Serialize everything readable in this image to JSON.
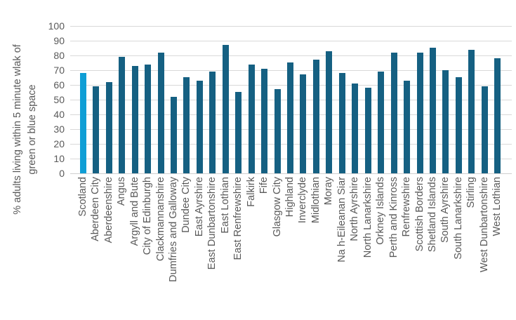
{
  "chart_data": {
    "type": "bar",
    "title": "",
    "ylabel_lines": [
      "% adults living within 5 minute wlak of",
      "green or blue space"
    ],
    "xlabel": "",
    "ylim": [
      0,
      100
    ],
    "yticks": [
      0,
      10,
      20,
      30,
      40,
      50,
      60,
      70,
      80,
      90,
      100
    ],
    "grid": "horizontal",
    "legend": "none",
    "highlight_category": "Scotland",
    "categories": [
      "Scotland",
      "Aberdeen City",
      "Aberdeenshire",
      "Angus",
      "Argyll and Bute",
      "City of Edinburgh",
      "Clackmannanshire",
      "Dumfries and Galloway",
      "Dundee City",
      "East Ayrshire",
      "East Dunbartonshire",
      "East Lothian",
      "East Renfrewshire",
      "Falkirk",
      "Fife",
      "Glasgow City",
      "Highland",
      "Inverclyde",
      "Midlothian",
      "Moray",
      "Na h-Eileanan Siar",
      "North Ayrshire",
      "North Lanarkshire",
      "Orkney Islands",
      "Perth and Kinross",
      "Renfrewshire",
      "Scottish Borders",
      "Shetland Islands",
      "South Ayrshire",
      "South Lanarkshire",
      "Stirling",
      "West Dunbartonshire",
      "West Lothian"
    ],
    "values": [
      68,
      59,
      62,
      79,
      73,
      74,
      82,
      52,
      65,
      63,
      69,
      87,
      55,
      74,
      71,
      57,
      75,
      67,
      77,
      83,
      68,
      61,
      58,
      69,
      82,
      63,
      82,
      85,
      70,
      65,
      84,
      59,
      78
    ],
    "colors": {
      "default_bar": "#156082",
      "highlight_bar": "#0F9ED5",
      "gridline": "#D9D9D9",
      "axis_text": "#595959"
    }
  }
}
